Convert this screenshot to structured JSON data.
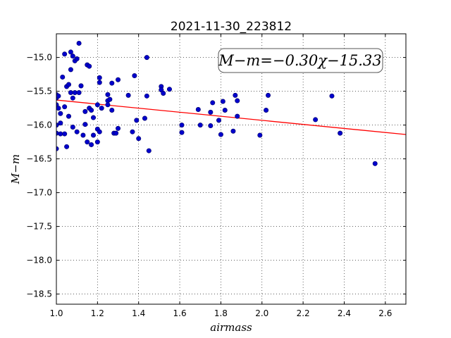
{
  "chart_data": {
    "type": "scatter",
    "title": "2021-11-30_223812",
    "xlabel": "airmass",
    "ylabel": "M−m",
    "xlim": [
      1.0,
      2.7
    ],
    "ylim": [
      -18.65,
      -14.65
    ],
    "y_inverted": true,
    "grid": true,
    "xticks": [
      1.0,
      1.2,
      1.4,
      1.6,
      1.8,
      2.0,
      2.2,
      2.4,
      2.6
    ],
    "xtick_labels": [
      "1.0",
      "1.2",
      "1.4",
      "1.6",
      "1.8",
      "2.0",
      "2.2",
      "2.4",
      "2.6"
    ],
    "yticks": [
      -15.0,
      -15.5,
      -16.0,
      -16.5,
      -17.0,
      -17.5,
      -18.0,
      -18.5
    ],
    "ytick_labels": [
      "−15.0",
      "−15.5",
      "−16.0",
      "−16.5",
      "−17.0",
      "−17.5",
      "−18.0",
      "−18.5"
    ],
    "annotation": "M−m=−0.30χ−15.33",
    "fit": {
      "slope": -0.3,
      "intercept": -15.33,
      "color": "#ff0000"
    },
    "point_color": "#0000cc",
    "series": [
      {
        "points": [
          [
            1.0,
            -15.55
          ],
          [
            1.0,
            -15.6
          ],
          [
            1.0,
            -15.7
          ],
          [
            1.0,
            -16.0
          ],
          [
            1.0,
            -16.12
          ],
          [
            1.0,
            -16.35
          ],
          [
            1.01,
            -15.75
          ],
          [
            1.01,
            -15.57
          ],
          [
            1.02,
            -15.97
          ],
          [
            1.02,
            -16.13
          ],
          [
            1.02,
            -15.83
          ],
          [
            1.03,
            -15.29
          ],
          [
            1.04,
            -16.13
          ],
          [
            1.04,
            -15.73
          ],
          [
            1.04,
            -14.95
          ],
          [
            1.05,
            -16.32
          ],
          [
            1.05,
            -15.43
          ],
          [
            1.06,
            -15.4
          ],
          [
            1.06,
            -15.87
          ],
          [
            1.07,
            -14.92
          ],
          [
            1.07,
            -15.18
          ],
          [
            1.07,
            -15.52
          ],
          [
            1.08,
            -14.98
          ],
          [
            1.08,
            -15.6
          ],
          [
            1.08,
            -16.03
          ],
          [
            1.09,
            -15.52
          ],
          [
            1.09,
            -15.05
          ],
          [
            1.1,
            -16.1
          ],
          [
            1.1,
            -15.02
          ],
          [
            1.11,
            -14.79
          ],
          [
            1.11,
            -15.52
          ],
          [
            1.12,
            -15.42
          ],
          [
            1.12,
            -15.42
          ],
          [
            1.13,
            -16.15
          ],
          [
            1.14,
            -15.8
          ],
          [
            1.14,
            -15.99
          ],
          [
            1.15,
            -16.25
          ],
          [
            1.15,
            -15.11
          ],
          [
            1.16,
            -15.13
          ],
          [
            1.16,
            -15.75
          ],
          [
            1.17,
            -16.29
          ],
          [
            1.17,
            -15.78
          ],
          [
            1.18,
            -15.89
          ],
          [
            1.18,
            -16.15
          ],
          [
            1.2,
            -16.25
          ],
          [
            1.2,
            -16.06
          ],
          [
            1.2,
            -15.7
          ],
          [
            1.21,
            -15.3
          ],
          [
            1.21,
            -15.37
          ],
          [
            1.21,
            -16.1
          ],
          [
            1.22,
            -15.75
          ],
          [
            1.25,
            -15.64
          ],
          [
            1.25,
            -15.7
          ],
          [
            1.25,
            -15.55
          ],
          [
            1.26,
            -15.62
          ],
          [
            1.27,
            -15.38
          ],
          [
            1.27,
            -15.78
          ],
          [
            1.28,
            -16.12
          ],
          [
            1.29,
            -16.12
          ],
          [
            1.3,
            -16.05
          ],
          [
            1.3,
            -15.33
          ],
          [
            1.35,
            -15.56
          ],
          [
            1.37,
            -16.1
          ],
          [
            1.38,
            -15.27
          ],
          [
            1.39,
            -15.93
          ],
          [
            1.4,
            -16.2
          ],
          [
            1.43,
            -15.9
          ],
          [
            1.44,
            -15.0
          ],
          [
            1.44,
            -15.57
          ],
          [
            1.45,
            -16.38
          ],
          [
            1.51,
            -15.43
          ],
          [
            1.51,
            -15.48
          ],
          [
            1.52,
            -15.53
          ],
          [
            1.55,
            -15.47
          ],
          [
            1.61,
            -16.0
          ],
          [
            1.61,
            -16.11
          ],
          [
            1.69,
            -15.77
          ],
          [
            1.7,
            -16.0
          ],
          [
            1.75,
            -15.81
          ],
          [
            1.75,
            -16.01
          ],
          [
            1.76,
            -15.67
          ],
          [
            1.79,
            -15.93
          ],
          [
            1.8,
            -16.14
          ],
          [
            1.81,
            -15.65
          ],
          [
            1.82,
            -15.78
          ],
          [
            1.86,
            -16.09
          ],
          [
            1.87,
            -15.56
          ],
          [
            1.88,
            -15.87
          ],
          [
            1.88,
            -15.64
          ],
          [
            1.99,
            -16.15
          ],
          [
            2.02,
            -15.78
          ],
          [
            2.03,
            -15.56
          ],
          [
            2.26,
            -15.92
          ],
          [
            2.34,
            -15.57
          ],
          [
            2.38,
            -16.12
          ],
          [
            2.55,
            -16.57
          ]
        ]
      }
    ]
  }
}
